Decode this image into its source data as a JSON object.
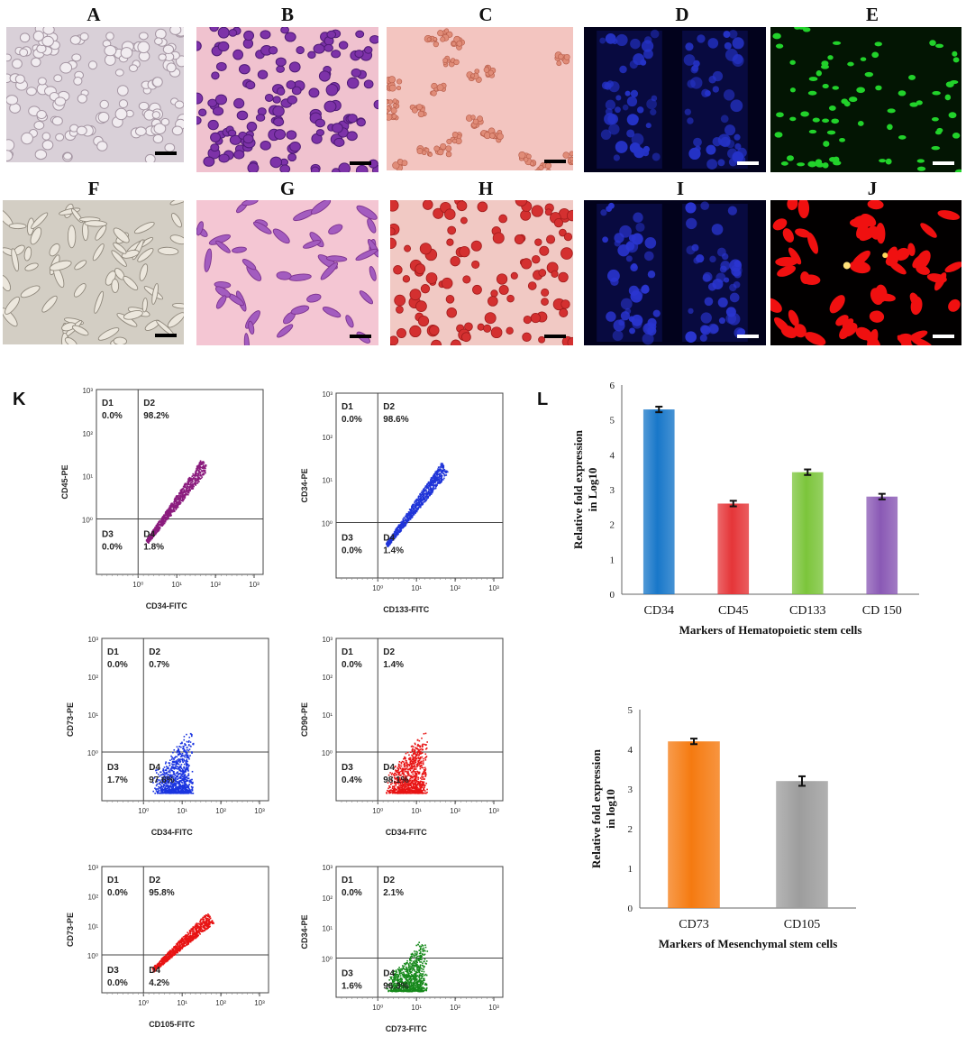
{
  "panel_labels": [
    "A",
    "B",
    "C",
    "D",
    "E",
    "F",
    "G",
    "H",
    "I",
    "J",
    "K",
    "L"
  ],
  "micrographs": [
    {
      "label": "A",
      "style": "brightfield-round",
      "colors": {
        "bg": "#d9d0d8",
        "cell": "#f1ecf0",
        "edge": "#a596a3"
      }
    },
    {
      "label": "B",
      "style": "stain-round",
      "colors": {
        "bg": "#f0c2cf",
        "cell": "#7d32a8",
        "edge": "#4e1a75"
      }
    },
    {
      "label": "C",
      "style": "cluster",
      "colors": {
        "bg": "#f3c5c0",
        "cell": "#e08c78",
        "edge": "#b55a47"
      }
    },
    {
      "label": "D",
      "style": "fluor-blue-cluster",
      "colors": {
        "bg": "#02021c",
        "cell": "#2533c8",
        "edge": "#1c23a0"
      }
    },
    {
      "label": "E",
      "style": "fluor-dots",
      "colors": {
        "bg": "#031503",
        "cell": "#22d22b",
        "edge": "#16a51d"
      }
    },
    {
      "label": "F",
      "style": "brightfield-spindle",
      "colors": {
        "bg": "#d3cec4",
        "cell": "#ece7dd",
        "edge": "#8f887c"
      }
    },
    {
      "label": "G",
      "style": "stain-spindle",
      "colors": {
        "bg": "#f4c6d3",
        "cell": "#a35cbf",
        "edge": "#7c318e"
      }
    },
    {
      "label": "H",
      "style": "stain-red-dense",
      "colors": {
        "bg": "#f1c9c4",
        "cell": "#d43030",
        "edge": "#a01c1c"
      }
    },
    {
      "label": "I",
      "style": "fluor-blue-cluster",
      "colors": {
        "bg": "#02021c",
        "cell": "#2a35d0",
        "edge": "#1c23a0"
      }
    },
    {
      "label": "J",
      "style": "fluor-red",
      "colors": {
        "bg": "#020000",
        "cell": "#f01010",
        "edge": "#c00000"
      }
    }
  ],
  "flow": {
    "quadrant_labels": [
      "D1",
      "D2",
      "D3",
      "D4"
    ],
    "y_ticks": [
      "10³",
      "10²",
      "10¹",
      "10⁰"
    ],
    "x_ticks": [
      "10⁰",
      "10¹",
      "10²",
      "10³"
    ],
    "plots": [
      {
        "ylabel": "CD45-PE",
        "xlabel": "CD34-FITC",
        "values": [
          "0.0%",
          "98.2%",
          "0.0%",
          "1.8%"
        ],
        "color": "#8b1c7e",
        "cloud": "diagonal"
      },
      {
        "ylabel": "CD34-PE",
        "xlabel": "CD133-FITC",
        "values": [
          "0.0%",
          "98.6%",
          "0.0%",
          "1.4%"
        ],
        "color": "#1f34d8",
        "cloud": "diagonal"
      },
      {
        "ylabel": "CD73-PE",
        "xlabel": "CD34-FITC",
        "values": [
          "0.0%",
          "0.7%",
          "1.7%",
          "97.6%"
        ],
        "color": "#1b35e0",
        "cloud": "low"
      },
      {
        "ylabel": "CD90-PE",
        "xlabel": "CD34-FITC",
        "values": [
          "0.0%",
          "1.4%",
          "0.4%",
          "98.1%"
        ],
        "color": "#e81414",
        "cloud": "low"
      },
      {
        "ylabel": "CD73-PE",
        "xlabel": "CD105-FITC",
        "values": [
          "0.0%",
          "95.8%",
          "0.0%",
          "4.2%"
        ],
        "color": "#e81414",
        "cloud": "diagonal"
      },
      {
        "ylabel": "CD34-PE",
        "xlabel": "CD73-FITC",
        "values": [
          "0.0%",
          "2.1%",
          "1.6%",
          "96.3%"
        ],
        "color": "#16891b",
        "cloud": "low"
      }
    ]
  },
  "chart_data": [
    {
      "type": "bar",
      "ylabel": "Relative fold expression in Log10",
      "ylabel_lines": [
        "Relative fold expression",
        "in Log10"
      ],
      "xlabel": "Markers of Hematopoietic stem cells",
      "categories": [
        "CD34",
        "CD45",
        "CD133",
        "CD 150"
      ],
      "values": [
        5.3,
        2.6,
        3.5,
        2.8
      ],
      "errors": [
        0.08,
        0.08,
        0.08,
        0.08
      ],
      "colors": [
        "#1877c9",
        "#e53538",
        "#7cc53b",
        "#8a59b5"
      ],
      "ylim": [
        0,
        6
      ],
      "yticks": [
        "0",
        "1",
        "2",
        "3",
        "4",
        "5",
        "6"
      ],
      "grid": false
    },
    {
      "type": "bar",
      "ylabel": "Relative fold expression in log10",
      "ylabel_lines": [
        "Relative fold expression",
        "in log10"
      ],
      "xlabel": "Markers of Mesenchymal stem cells",
      "categories": [
        "CD73",
        "CD105"
      ],
      "values": [
        4.2,
        3.2
      ],
      "errors": [
        0.07,
        0.12
      ],
      "colors": [
        "#f57a10",
        "#9d9d9d"
      ],
      "ylim": [
        0,
        5
      ],
      "yticks": [
        "0",
        "1",
        "2",
        "3",
        "4",
        "5"
      ],
      "grid": false
    }
  ]
}
